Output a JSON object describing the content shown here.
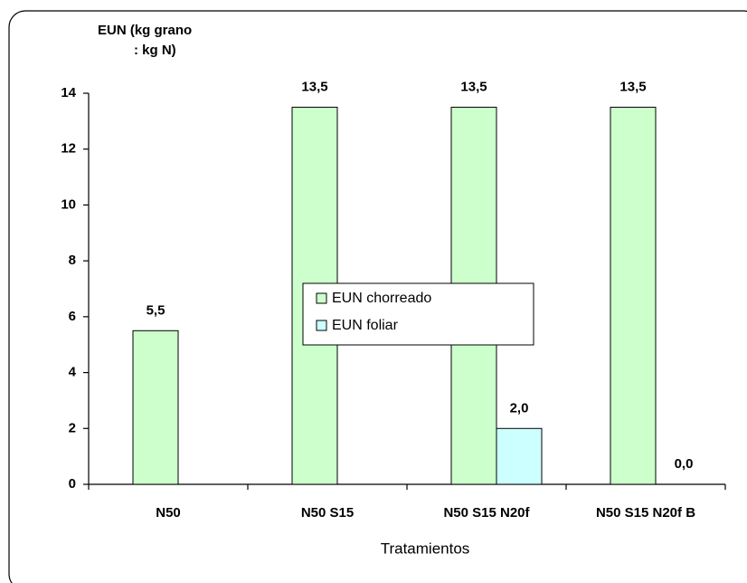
{
  "chart_data": {
    "type": "bar",
    "y_label": [
      "EUN (kg grano",
      ": kg N)"
    ],
    "x_label": "Tratamientos",
    "categories": [
      "N50",
      "N50 S15",
      "N50 S15 N20f",
      "N50 S15 N20f B"
    ],
    "series": [
      {
        "name": "EUN chorreado",
        "color": "#ccffcc",
        "values": [
          5.5,
          13.5,
          13.5,
          13.5
        ],
        "value_labels": [
          "5,5",
          "13,5",
          "13,5",
          "13,5"
        ]
      },
      {
        "name": "EUN foliar",
        "color": "#ccffff",
        "values": [
          null,
          null,
          2.0,
          0.0
        ],
        "value_labels": [
          null,
          null,
          "2,0",
          "0,0"
        ]
      }
    ],
    "ylim": [
      0,
      14
    ],
    "yticks": [
      0,
      2,
      4,
      6,
      8,
      10,
      12,
      14
    ],
    "grid": false,
    "legend": "center"
  }
}
